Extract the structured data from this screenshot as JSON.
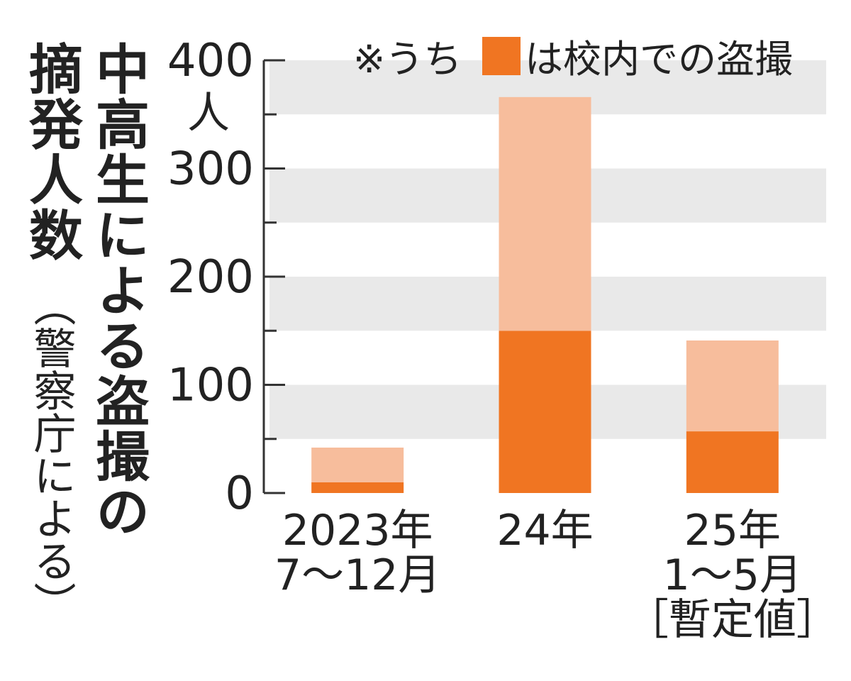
{
  "title": {
    "main": "中高生による盗撮の",
    "sub": "摘発人数",
    "source": "（警察庁による）"
  },
  "chart_data": {
    "type": "bar",
    "stacked": true,
    "title": "中高生による盗撮の摘発人数",
    "subtitle": "（警察庁による）",
    "y_unit_label": "人",
    "ylim": [
      0,
      400
    ],
    "yticks": [
      "0",
      "100",
      "200",
      "300",
      "400"
    ],
    "categories": [
      [
        "2023年",
        "7〜12月"
      ],
      [
        "24年"
      ],
      [
        "25年",
        "1〜5月",
        "［暫定値］"
      ]
    ],
    "totals": [
      42,
      366,
      141
    ],
    "series": [
      {
        "values": [
          10,
          150,
          57
        ],
        "color": "#f07522"
      },
      {
        "values": [
          32,
          216,
          84
        ],
        "color": "#f7bd9c"
      }
    ],
    "legend": {
      "prefix": "※うち",
      "suffix": "は校内での盗撮",
      "color": "#f07522"
    },
    "band_color": "#e9e9e9"
  }
}
